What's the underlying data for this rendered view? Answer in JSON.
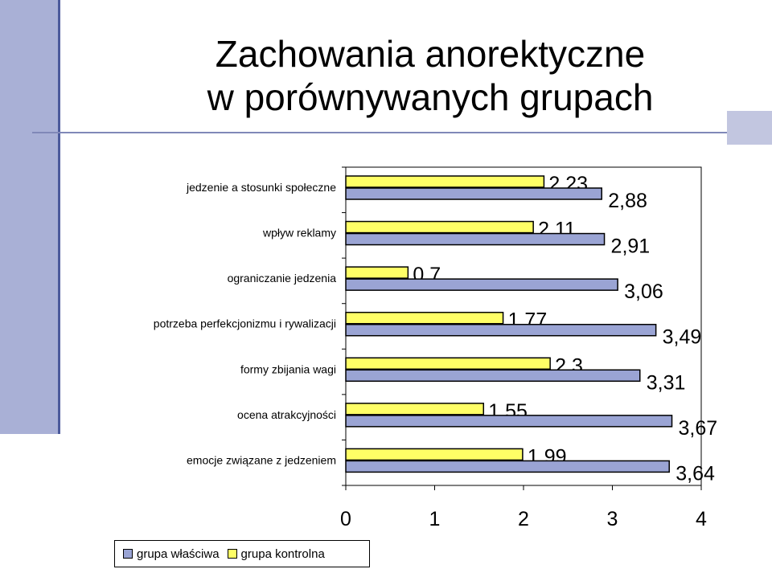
{
  "title_lines": [
    "Zachowania anorektyczne",
    "w porównywanych grupach"
  ],
  "colors": {
    "grupa_wlasciwa": "#9aa4d4",
    "grupa_kontrolna": "#ffff66"
  },
  "chart_data": {
    "type": "bar",
    "orientation": "horizontal",
    "categories": [
      "jedzenie a stosunki społeczne",
      "wpływ reklamy",
      "ograniczanie jedzenia",
      "potrzeba perfekcjonizmu i rywalizacji",
      "formy zbijania wagi",
      "ocena atrakcyjności",
      "emocje związane z jedzeniem"
    ],
    "series": [
      {
        "name": "grupa kontrolna",
        "values": [
          2.23,
          2.11,
          0.7,
          1.77,
          2.3,
          1.55,
          1.99
        ],
        "labels": [
          "2,23",
          "2,11",
          "0,7",
          "1,77",
          "2,3",
          "1,55",
          "1,99"
        ]
      },
      {
        "name": "grupa właściwa",
        "values": [
          2.88,
          2.91,
          3.06,
          3.49,
          3.31,
          3.67,
          3.64
        ],
        "labels": [
          "2,88",
          "2,91",
          "3,06",
          "3,49",
          "3,31",
          "3,67",
          "3,64"
        ]
      }
    ],
    "xlim": [
      0,
      4
    ],
    "xticks": [
      "0",
      "1",
      "2",
      "3",
      "4"
    ],
    "grid": false,
    "legend_position": "bottom-left",
    "legend": [
      "grupa właściwa",
      "grupa kontrolna"
    ]
  }
}
